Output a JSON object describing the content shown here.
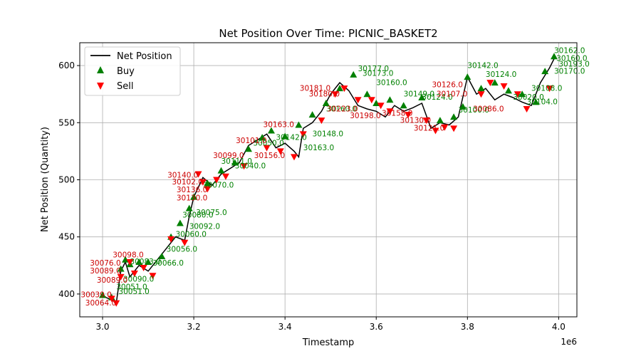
{
  "chart_data": {
    "type": "line",
    "title": "Net Position Over Time: PICNIC_BASKET2",
    "xlabel": "Timestamp",
    "ylabel": "Net Position (Quantity)",
    "x_offset_label": "1e6",
    "xlim": [
      2.95,
      4.04
    ],
    "ylim": [
      380,
      620
    ],
    "xticks": [
      3.0,
      3.2,
      3.4,
      3.6,
      3.8,
      4.0
    ],
    "xtick_labels": [
      "3.0",
      "3.2",
      "3.4",
      "3.6",
      "3.8",
      "4.0"
    ],
    "yticks": [
      400,
      450,
      500,
      550,
      600
    ],
    "ytick_labels": [
      "400",
      "450",
      "500",
      "550",
      "600"
    ],
    "grid": true,
    "legend_position": "upper left",
    "series": [
      {
        "name": "Net Position",
        "kind": "line",
        "color": "#000000",
        "x": [
          3.0,
          3.02,
          3.03,
          3.04,
          3.05,
          3.06,
          3.08,
          3.1,
          3.12,
          3.14,
          3.16,
          3.18,
          3.19,
          3.2,
          3.22,
          3.24,
          3.26,
          3.28,
          3.3,
          3.32,
          3.34,
          3.36,
          3.38,
          3.4,
          3.42,
          3.43,
          3.44,
          3.46,
          3.48,
          3.5,
          3.52,
          3.54,
          3.56,
          3.58,
          3.6,
          3.62,
          3.64,
          3.66,
          3.68,
          3.7,
          3.72,
          3.74,
          3.76,
          3.78,
          3.8,
          3.82,
          3.84,
          3.86,
          3.88,
          3.9,
          3.92,
          3.94,
          3.96,
          3.98,
          3.99
        ],
        "y": [
          398,
          395,
          392,
          420,
          428,
          415,
          425,
          420,
          430,
          440,
          450,
          447,
          468,
          485,
          502,
          495,
          505,
          510,
          515,
          530,
          535,
          540,
          528,
          532,
          525,
          520,
          545,
          550,
          560,
          575,
          585,
          578,
          565,
          562,
          560,
          555,
          565,
          560,
          563,
          567,
          545,
          550,
          548,
          555,
          590,
          575,
          580,
          570,
          575,
          572,
          568,
          565,
          585,
          598,
          606
        ]
      },
      {
        "name": "Buy",
        "kind": "marker",
        "marker": "triangle-up",
        "color": "#008000",
        "x": [
          3.0,
          3.02,
          3.04,
          3.05,
          3.06,
          3.08,
          3.1,
          3.13,
          3.15,
          3.17,
          3.19,
          3.2,
          3.23,
          3.26,
          3.29,
          3.32,
          3.35,
          3.37,
          3.4,
          3.43,
          3.46,
          3.49,
          3.52,
          3.55,
          3.58,
          3.6,
          3.63,
          3.66,
          3.7,
          3.74,
          3.77,
          3.79,
          3.8,
          3.83,
          3.86,
          3.89,
          3.92,
          3.95,
          3.97,
          3.99
        ],
        "y": [
          399,
          397,
          422,
          430,
          426,
          428,
          428,
          433,
          450,
          462,
          475,
          485,
          497,
          508,
          515,
          527,
          537,
          543,
          538,
          548,
          557,
          567,
          580,
          592,
          575,
          567,
          570,
          565,
          572,
          552,
          555,
          564,
          590,
          580,
          585,
          578,
          575,
          568,
          595,
          608
        ]
      },
      {
        "name": "Sell",
        "kind": "marker",
        "marker": "triangle-down",
        "color": "#ff0000",
        "x": [
          3.02,
          3.03,
          3.04,
          3.06,
          3.07,
          3.09,
          3.11,
          3.15,
          3.18,
          3.21,
          3.22,
          3.23,
          3.25,
          3.27,
          3.31,
          3.36,
          3.39,
          3.42,
          3.44,
          3.48,
          3.51,
          3.53,
          3.56,
          3.59,
          3.61,
          3.63,
          3.67,
          3.71,
          3.73,
          3.75,
          3.77,
          3.83,
          3.85,
          3.88,
          3.91,
          3.93,
          3.98
        ],
        "y": [
          396,
          392,
          415,
          428,
          418,
          423,
          416,
          448,
          445,
          505,
          498,
          492,
          500,
          503,
          512,
          528,
          525,
          520,
          540,
          552,
          575,
          580,
          570,
          570,
          565,
          560,
          557,
          552,
          543,
          546,
          545,
          575,
          585,
          582,
          575,
          562,
          580
        ]
      }
    ],
    "annotations": {
      "color_buy": "#008000",
      "color_sell": "#cc0000",
      "buy": [
        {
          "x": 3.03,
          "y": 404,
          "text": "30051.0"
        },
        {
          "x": 3.035,
          "y": 400,
          "text": "30051.0"
        },
        {
          "x": 3.045,
          "y": 411,
          "text": "30090.0"
        },
        {
          "x": 3.06,
          "y": 426,
          "text": "30083.0"
        },
        {
          "x": 3.11,
          "y": 425,
          "text": "30066.0"
        },
        {
          "x": 3.14,
          "y": 437,
          "text": "30056.0"
        },
        {
          "x": 3.16,
          "y": 450,
          "text": "30060.0"
        },
        {
          "x": 3.175,
          "y": 467,
          "text": "30080.0"
        },
        {
          "x": 3.19,
          "y": 457,
          "text": "30092.0"
        },
        {
          "x": 3.205,
          "y": 469,
          "text": "30075.0"
        },
        {
          "x": 3.22,
          "y": 493,
          "text": "30070.0"
        },
        {
          "x": 3.26,
          "y": 514,
          "text": "30111.0"
        },
        {
          "x": 3.29,
          "y": 510,
          "text": "30040.0"
        },
        {
          "x": 3.33,
          "y": 530,
          "text": "30050.0"
        },
        {
          "x": 3.38,
          "y": 535,
          "text": "30142.0"
        },
        {
          "x": 3.44,
          "y": 526,
          "text": "30163.0"
        },
        {
          "x": 3.46,
          "y": 538,
          "text": "30148.0"
        },
        {
          "x": 3.49,
          "y": 560,
          "text": "30160.0"
        },
        {
          "x": 3.56,
          "y": 595,
          "text": "30177.0"
        },
        {
          "x": 3.57,
          "y": 591,
          "text": "30173.0"
        },
        {
          "x": 3.6,
          "y": 583,
          "text": "30160.0"
        },
        {
          "x": 3.66,
          "y": 573,
          "text": "30149.0"
        },
        {
          "x": 3.7,
          "y": 570,
          "text": "30124.0"
        },
        {
          "x": 3.8,
          "y": 598,
          "text": "30142.0"
        },
        {
          "x": 3.84,
          "y": 590,
          "text": "30124.0"
        },
        {
          "x": 3.78,
          "y": 559,
          "text": "30100.0"
        },
        {
          "x": 3.9,
          "y": 570,
          "text": "30020.0"
        },
        {
          "x": 3.94,
          "y": 578,
          "text": "30108.0"
        },
        {
          "x": 3.93,
          "y": 566,
          "text": "30104.0"
        },
        {
          "x": 3.99,
          "y": 611,
          "text": "30162.0"
        },
        {
          "x": 3.995,
          "y": 604,
          "text": "30160.0"
        },
        {
          "x": 4.0,
          "y": 599,
          "text": "30193.0"
        },
        {
          "x": 3.99,
          "y": 593,
          "text": "30170.0"
        }
      ],
      "sell": [
        {
          "x": 3.04,
          "y": 425,
          "text": "30076.0"
        },
        {
          "x": 3.04,
          "y": 418,
          "text": "30089.0"
        },
        {
          "x": 3.055,
          "y": 410,
          "text": "30089.0"
        },
        {
          "x": 3.09,
          "y": 432,
          "text": "30098.0"
        },
        {
          "x": 3.02,
          "y": 397,
          "text": "30039.0"
        },
        {
          "x": 3.03,
          "y": 390,
          "text": "30064.0"
        },
        {
          "x": 3.21,
          "y": 502,
          "text": "30140.0"
        },
        {
          "x": 3.22,
          "y": 496,
          "text": "30102.0"
        },
        {
          "x": 3.23,
          "y": 489,
          "text": "30136.0"
        },
        {
          "x": 3.23,
          "y": 482,
          "text": "30130.0"
        },
        {
          "x": 3.31,
          "y": 519,
          "text": "30099.0"
        },
        {
          "x": 3.36,
          "y": 532,
          "text": "30101.0"
        },
        {
          "x": 3.4,
          "y": 519,
          "text": "30156.0"
        },
        {
          "x": 3.42,
          "y": 546,
          "text": "30163.0"
        },
        {
          "x": 3.5,
          "y": 578,
          "text": "30181.0"
        },
        {
          "x": 3.52,
          "y": 573,
          "text": "30180.0"
        },
        {
          "x": 3.56,
          "y": 560,
          "text": "30223.0"
        },
        {
          "x": 3.61,
          "y": 554,
          "text": "30198.0"
        },
        {
          "x": 3.68,
          "y": 556,
          "text": "30158.0"
        },
        {
          "x": 3.72,
          "y": 550,
          "text": "30130.0"
        },
        {
          "x": 3.75,
          "y": 543,
          "text": "30121.0"
        },
        {
          "x": 3.79,
          "y": 581,
          "text": "30126.0"
        },
        {
          "x": 3.8,
          "y": 573,
          "text": "30107.0"
        },
        {
          "x": 3.88,
          "y": 560,
          "text": "30086.0"
        }
      ]
    }
  }
}
